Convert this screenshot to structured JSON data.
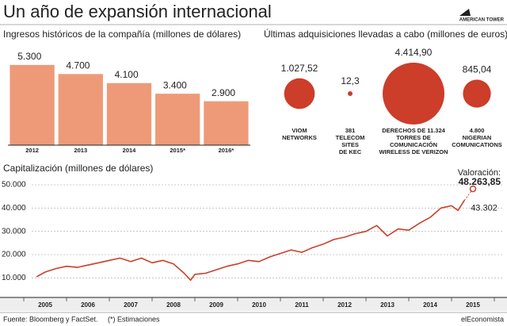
{
  "title": "Un año de expansión internacional",
  "logo": "AMERICAN TOWER",
  "footer": {
    "source": "Fuente: Bloomberg y FactSet.",
    "note": "(*) Estimaciones",
    "brand": "elEconomista"
  },
  "chart_data": [
    {
      "type": "bar",
      "title": "Ingresos históricos de la compañía (millones de dólares)",
      "categories": [
        "2012",
        "2013",
        "2014",
        "2015*",
        "2016*"
      ],
      "values": [
        5300,
        4700,
        4100,
        3400,
        2900
      ],
      "value_labels": [
        "5.300",
        "4.700",
        "4.100",
        "3.400",
        "2.900"
      ],
      "color": "#ee9a78",
      "ylim": [
        0,
        6500
      ]
    },
    {
      "type": "bubble",
      "title": "Últimas adquisiciones llevadas a cabo (millones de euros)",
      "categories": [
        "VIOM\nNETWORKS",
        "381\nTELECOM\nSITES\nDE KEC",
        "DERECHOS DE 11.324\nTORRES DE\nCOMUNICACIÓN\nWIRELESS DE VERIZON",
        "4.800\nNIGERIAN\nCOMUNICATIONS"
      ],
      "values": [
        1027.52,
        12.3,
        4414.9,
        845.04
      ],
      "value_labels": [
        "1.027,52",
        "12,3",
        "4.414,90",
        "845,04"
      ],
      "color": "#cc3d2a"
    },
    {
      "type": "line",
      "title": "Capitalización (millones de dólares)",
      "x": [
        2005.3,
        2005.5,
        2005.75,
        2006.0,
        2006.25,
        2006.5,
        2006.75,
        2007.0,
        2007.25,
        2007.5,
        2007.75,
        2008.0,
        2008.25,
        2008.5,
        2008.75,
        2008.9,
        2009.0,
        2009.25,
        2009.5,
        2009.75,
        2010.0,
        2010.25,
        2010.5,
        2010.75,
        2011.0,
        2011.25,
        2011.5,
        2011.75,
        2012.0,
        2012.25,
        2012.5,
        2012.75,
        2013.0,
        2013.25,
        2013.5,
        2013.75,
        2014.0,
        2014.25,
        2014.5,
        2014.75,
        2015.0,
        2015.15,
        2015.3
      ],
      "values": [
        10500,
        12500,
        14000,
        15000,
        14500,
        15500,
        16500,
        17500,
        18500,
        17000,
        18500,
        16500,
        17500,
        16000,
        12000,
        9000,
        11500,
        12000,
        13500,
        15000,
        16000,
        17500,
        17000,
        19000,
        20500,
        22000,
        21000,
        23000,
        24500,
        26500,
        27500,
        29000,
        30000,
        32500,
        28000,
        31000,
        30500,
        33500,
        36000,
        40000,
        41000,
        39000,
        43302
      ],
      "end_label": "43.302",
      "valuation": {
        "label": "Valoración:",
        "x": 2015.5,
        "value": 48263.85,
        "value_label": "48.263,85"
      },
      "color": "#c8402b",
      "xlim": [
        2005,
        2016
      ],
      "xticks": [
        {
          "value": 2005.5,
          "label": "2005"
        },
        {
          "value": 2006.5,
          "label": "2006"
        },
        {
          "value": 2007.5,
          "label": "2007"
        },
        {
          "value": 2008.5,
          "label": "2008"
        },
        {
          "value": 2009.5,
          "label": "2009"
        },
        {
          "value": 2010.5,
          "label": "2010"
        },
        {
          "value": 2011.5,
          "label": "2011"
        },
        {
          "value": 2012.5,
          "label": "2012"
        },
        {
          "value": 2013.5,
          "label": "2013"
        },
        {
          "value": 2014.5,
          "label": "2014"
        },
        {
          "value": 2015.5,
          "label": "2015"
        }
      ],
      "ylim": [
        5000,
        50000
      ],
      "yticks": [
        {
          "value": 10000,
          "label": "10.000"
        },
        {
          "value": 20000,
          "label": "20.000"
        },
        {
          "value": 30000,
          "label": "30.000"
        },
        {
          "value": 40000,
          "label": "40.000"
        },
        {
          "value": 50000,
          "label": "50.000"
        }
      ],
      "grid": true
    }
  ]
}
